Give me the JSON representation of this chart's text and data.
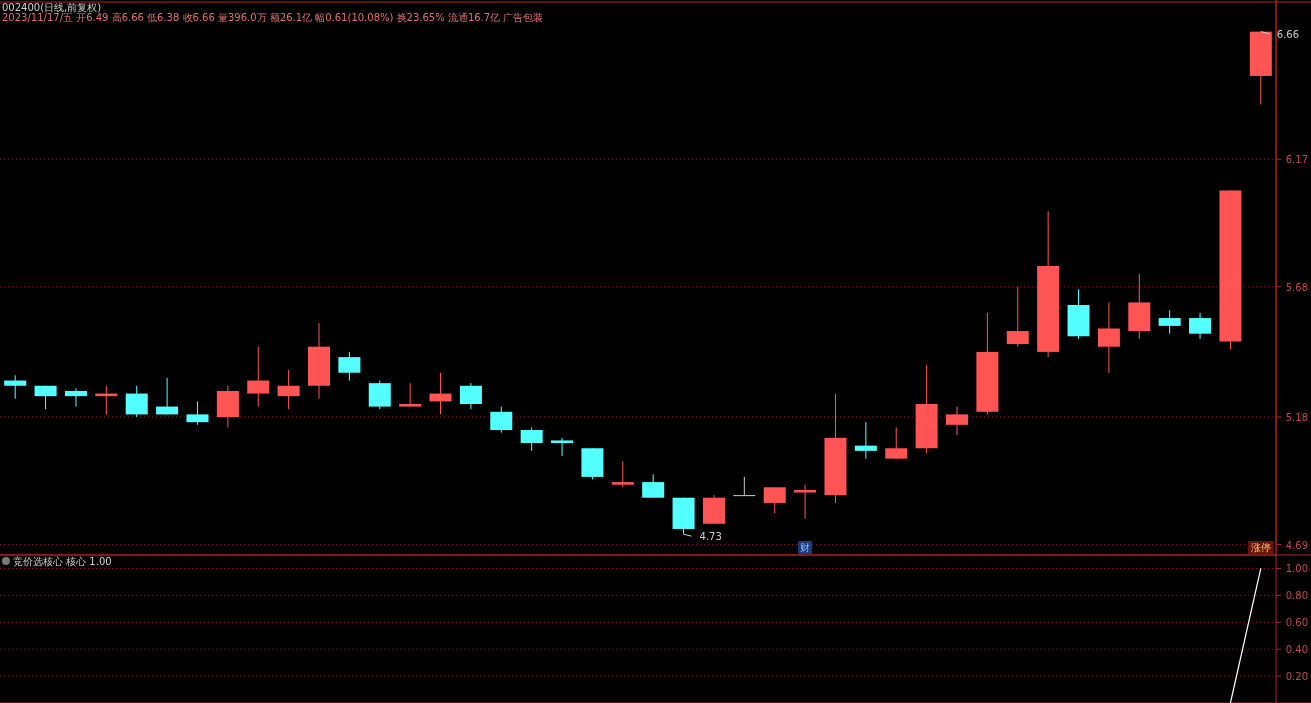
{
  "chart_data": [
    {
      "type": "candlestick",
      "title": "002400(日线,前复权)",
      "subtitle": "2023/11/17/五 开6.49 高6.66 低6.38 收6.66 量396.0万 额26.1亿 幅0.61(10.08%) 换23.65% 流通16.7亿 广告包装",
      "categories": [
        null,
        null,
        null,
        null,
        null,
        null,
        null,
        null,
        null,
        null,
        null,
        null,
        null,
        null,
        null,
        null,
        null,
        null,
        null,
        null,
        null,
        null,
        null,
        null,
        null,
        null,
        null,
        null,
        null,
        null,
        null,
        null,
        null,
        null,
        null,
        null,
        null,
        null,
        null,
        null,
        null,
        null
      ],
      "ohlc": [
        [
          5.32,
          5.34,
          5.25,
          5.3
        ],
        [
          5.3,
          5.3,
          5.21,
          5.26
        ],
        [
          5.28,
          5.29,
          5.22,
          5.26
        ],
        [
          5.26,
          5.3,
          5.19,
          5.27
        ],
        [
          5.27,
          5.3,
          5.18,
          5.19
        ],
        [
          5.22,
          5.33,
          5.19,
          5.19
        ],
        [
          5.19,
          5.24,
          5.15,
          5.16
        ],
        [
          5.18,
          5.3,
          5.14,
          5.28
        ],
        [
          5.27,
          5.45,
          5.22,
          5.32
        ],
        [
          5.26,
          5.36,
          5.21,
          5.3
        ],
        [
          5.3,
          5.54,
          5.25,
          5.45
        ],
        [
          5.41,
          5.43,
          5.32,
          5.35
        ],
        [
          5.31,
          5.32,
          5.21,
          5.22
        ],
        [
          5.22,
          5.31,
          5.22,
          5.23
        ],
        [
          5.24,
          5.35,
          5.19,
          5.27
        ],
        [
          5.3,
          5.31,
          5.21,
          5.23
        ],
        [
          5.2,
          5.22,
          5.12,
          5.13
        ],
        [
          5.13,
          5.14,
          5.05,
          5.08
        ],
        [
          5.09,
          5.1,
          5.03,
          5.08
        ],
        [
          5.06,
          5.06,
          4.94,
          4.95
        ],
        [
          4.92,
          5.01,
          4.91,
          4.93
        ],
        [
          4.93,
          4.96,
          4.87,
          4.87
        ],
        [
          4.87,
          4.87,
          4.73,
          4.75
        ],
        [
          4.77,
          4.88,
          4.77,
          4.87
        ],
        [
          4.88,
          4.95,
          4.88,
          4.88
        ],
        [
          4.85,
          4.91,
          4.81,
          4.91
        ],
        [
          4.89,
          4.92,
          4.79,
          4.9
        ],
        [
          4.88,
          5.27,
          4.85,
          5.1
        ],
        [
          5.07,
          5.16,
          5.02,
          5.05
        ],
        [
          5.02,
          5.14,
          5.02,
          5.06
        ],
        [
          5.06,
          5.38,
          5.04,
          5.23
        ],
        [
          5.15,
          5.22,
          5.11,
          5.19
        ],
        [
          5.2,
          5.58,
          5.19,
          5.43
        ],
        [
          5.46,
          5.68,
          5.45,
          5.51
        ],
        [
          5.43,
          5.97,
          5.41,
          5.76
        ],
        [
          5.61,
          5.67,
          5.48,
          5.49
        ],
        [
          5.45,
          5.62,
          5.35,
          5.52
        ],
        [
          5.51,
          5.73,
          5.48,
          5.62
        ],
        [
          5.56,
          5.59,
          5.5,
          5.53
        ],
        [
          5.56,
          5.58,
          5.48,
          5.5
        ],
        [
          5.47,
          6.05,
          5.44,
          6.05
        ],
        [
          6.49,
          6.66,
          6.38,
          6.66
        ]
      ],
      "colors": [
        "#54ffff",
        "#54ffff",
        "#54ffff",
        "#ff5454",
        "#54ffff",
        "#54ffff",
        "#54ffff",
        "#ff5454",
        "#ff5454",
        "#ff5454",
        "#ff5454",
        "#54ffff",
        "#54ffff",
        "#ff5454",
        "#ff5454",
        "#54ffff",
        "#54ffff",
        "#54ffff",
        "#54ffff",
        "#54ffff",
        "#ff5454",
        "#54ffff",
        "#54ffff",
        "#ff5454",
        "#c8c8c8",
        "#ff5454",
        "#ff5454",
        "#ff5454",
        "#54ffff",
        "#ff5454",
        "#ff5454",
        "#ff5454",
        "#ff5454",
        "#ff5454",
        "#ff5454",
        "#54ffff",
        "#ff5454",
        "#ff5454",
        "#54ffff",
        "#54ffff",
        "#ff5454",
        "#ff5454"
      ],
      "ylim": [
        4.65,
        6.77
      ],
      "yticks": [
        4.69,
        5.18,
        5.68,
        6.17
      ],
      "grid": "y",
      "tick_labels": "y",
      "annotations": [
        "6.66",
        "4.73",
        "财",
        "涨停"
      ]
    },
    {
      "type": "line",
      "title": "竞价选核心 核心 1.00",
      "categories": [
        null,
        null,
        null,
        null,
        null,
        null,
        null,
        null,
        null,
        null,
        null,
        null,
        null,
        null,
        null,
        null,
        null,
        null,
        null,
        null,
        null,
        null,
        null,
        null,
        null,
        null,
        null,
        null,
        null,
        null,
        null,
        null,
        null,
        null,
        null,
        null,
        null,
        null,
        null,
        null,
        null,
        null
      ],
      "series": [
        {
          "color": "#ffffff",
          "values": [
            null,
            null,
            null,
            null,
            null,
            null,
            null,
            null,
            null,
            null,
            null,
            null,
            null,
            null,
            null,
            null,
            null,
            null,
            null,
            null,
            null,
            null,
            null,
            null,
            null,
            null,
            null,
            null,
            null,
            null,
            null,
            null,
            null,
            null,
            null,
            null,
            null,
            null,
            null,
            null,
            0,
            1
          ]
        }
      ],
      "ylim": [
        0,
        1.1
      ],
      "yticks": [
        {
          "value": 0.2,
          "label": "0.20"
        },
        {
          "value": 0.4,
          "label": "0.40"
        },
        {
          "value": 0.6,
          "label": "0.60"
        },
        {
          "value": 0.8,
          "label": "0.80"
        },
        {
          "value": 1.0,
          "label": "1.00"
        }
      ],
      "grid": "y",
      "tick_labels": "y"
    }
  ]
}
